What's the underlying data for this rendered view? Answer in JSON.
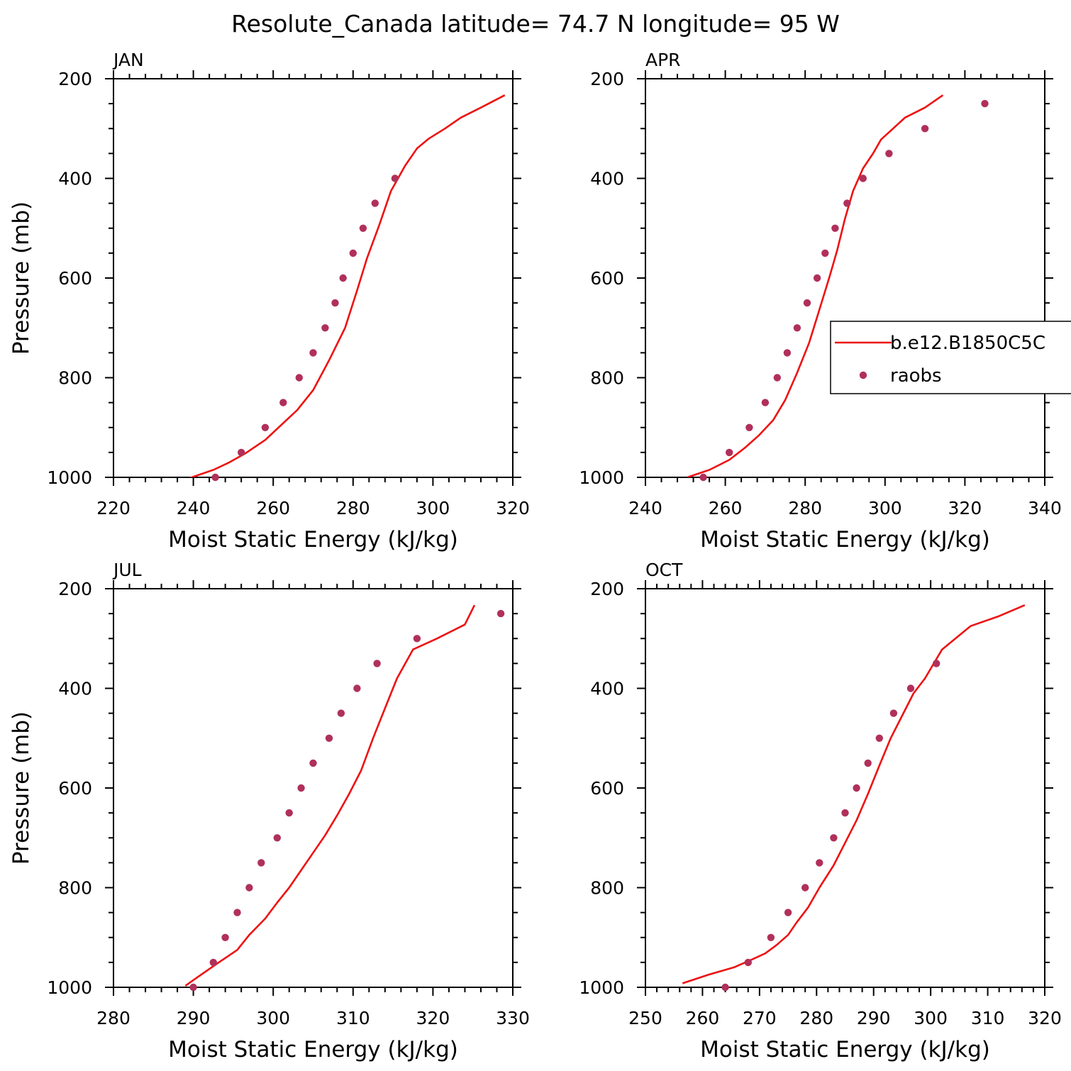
{
  "figure": {
    "title": "Resolute_Canada  latitude= 74.7 N longitude= 95 W"
  },
  "legend": {
    "entries": [
      {
        "label": "b.e12.B1850C5C",
        "kind": "line",
        "color": "#ee1111"
      },
      {
        "label": "raobs",
        "kind": "marker",
        "color": "#b0305a"
      }
    ]
  },
  "chart_data": [
    {
      "type": "line",
      "panel": "JAN",
      "xlabel": "Moist Static Energy (kJ/kg)",
      "ylabel": "Pressure (mb)",
      "xlim": [
        220,
        320
      ],
      "ylim": [
        200,
        1000
      ],
      "y_reversed": true,
      "xticks": [
        220,
        240,
        260,
        280,
        300,
        320
      ],
      "yticks": [
        200,
        400,
        600,
        800,
        1000
      ],
      "series": [
        {
          "name": "b.e12.B1850C5C",
          "kind": "line",
          "color": "#ee1111",
          "points": [
            [
              238.5,
              1003
            ],
            [
              245,
              985
            ],
            [
              249,
              970
            ],
            [
              253,
              952
            ],
            [
              258,
              925
            ],
            [
              262,
              895
            ],
            [
              266,
              865
            ],
            [
              270,
              825
            ],
            [
              274,
              765
            ],
            [
              278,
              700
            ],
            [
              281,
              625
            ],
            [
              283.5,
              560
            ],
            [
              286.5,
              495
            ],
            [
              289.5,
              425
            ],
            [
              293,
              375
            ],
            [
              296,
              340
            ],
            [
              299,
              320
            ],
            [
              303,
              300
            ],
            [
              307,
              278
            ],
            [
              312,
              258
            ],
            [
              318,
              233
            ]
          ]
        },
        {
          "name": "raobs",
          "kind": "scatter",
          "color": "#b0305a",
          "points": [
            [
              245.5,
              1000
            ],
            [
              252,
              950
            ],
            [
              258,
              900
            ],
            [
              262.5,
              850
            ],
            [
              266.5,
              800
            ],
            [
              270,
              750
            ],
            [
              273,
              700
            ],
            [
              275.5,
              650
            ],
            [
              277.5,
              600
            ],
            [
              280,
              550
            ],
            [
              282.5,
              500
            ],
            [
              285.5,
              450
            ],
            [
              290.5,
              400
            ]
          ]
        }
      ]
    },
    {
      "type": "line",
      "panel": "APR",
      "xlabel": "Moist Static Energy (kJ/kg)",
      "ylabel": "",
      "xlim": [
        240,
        340
      ],
      "ylim": [
        200,
        1000
      ],
      "y_reversed": true,
      "xticks": [
        240,
        260,
        280,
        300,
        320,
        340
      ],
      "yticks": [
        200,
        400,
        600,
        800,
        1000
      ],
      "series": [
        {
          "name": "b.e12.B1850C5C",
          "kind": "line",
          "color": "#ee1111",
          "points": [
            [
              250.5,
              1000
            ],
            [
              256,
              985
            ],
            [
              261,
              965
            ],
            [
              265,
              940
            ],
            [
              268.5,
              915
            ],
            [
              272,
              885
            ],
            [
              275,
              845
            ],
            [
              278,
              790
            ],
            [
              281,
              730
            ],
            [
              283.5,
              665
            ],
            [
              286,
              600
            ],
            [
              288,
              545
            ],
            [
              290,
              480
            ],
            [
              292,
              425
            ],
            [
              294.5,
              380
            ],
            [
              297,
              350
            ],
            [
              299,
              322
            ],
            [
              302,
              300
            ],
            [
              305,
              278
            ],
            [
              310,
              258
            ],
            [
              314.5,
              233
            ]
          ]
        },
        {
          "name": "raobs",
          "kind": "scatter",
          "color": "#b0305a",
          "points": [
            [
              254.5,
              1000
            ],
            [
              261,
              950
            ],
            [
              266,
              900
            ],
            [
              270,
              850
            ],
            [
              273,
              800
            ],
            [
              275.5,
              750
            ],
            [
              278,
              700
            ],
            [
              280.5,
              650
            ],
            [
              283,
              600
            ],
            [
              285,
              550
            ],
            [
              287.5,
              500
            ],
            [
              290.5,
              450
            ],
            [
              294.5,
              400
            ],
            [
              301,
              350
            ],
            [
              310,
              300
            ],
            [
              325,
              250
            ]
          ]
        }
      ]
    },
    {
      "type": "line",
      "panel": "JUL",
      "xlabel": "Moist Static Energy (kJ/kg)",
      "ylabel": "Pressure (mb)",
      "xlim": [
        280,
        330
      ],
      "ylim": [
        200,
        1000
      ],
      "y_reversed": true,
      "xticks": [
        280,
        290,
        300,
        310,
        320,
        330
      ],
      "yticks": [
        200,
        400,
        600,
        800,
        1000
      ],
      "series": [
        {
          "name": "b.e12.B1850C5C",
          "kind": "line",
          "color": "#ee1111",
          "points": [
            [
              289,
              997
            ],
            [
              290.5,
              980
            ],
            [
              293,
              952
            ],
            [
              295.5,
              925
            ],
            [
              297,
              895
            ],
            [
              299,
              862
            ],
            [
              300.5,
              830
            ],
            [
              302,
              800
            ],
            [
              303.5,
              765
            ],
            [
              305,
              730
            ],
            [
              306.5,
              695
            ],
            [
              308,
              655
            ],
            [
              309.5,
              612
            ],
            [
              311,
              565
            ],
            [
              312.5,
              500
            ],
            [
              314,
              440
            ],
            [
              315.5,
              380
            ],
            [
              317.5,
              322
            ],
            [
              320.5,
              300
            ],
            [
              324,
              272
            ],
            [
              325.2,
              233
            ]
          ]
        },
        {
          "name": "raobs",
          "kind": "scatter",
          "color": "#b0305a",
          "points": [
            [
              290,
              1000
            ],
            [
              292.5,
              950
            ],
            [
              294,
              900
            ],
            [
              295.5,
              850
            ],
            [
              297,
              800
            ],
            [
              298.5,
              750
            ],
            [
              300.5,
              700
            ],
            [
              302,
              650
            ],
            [
              303.5,
              600
            ],
            [
              305,
              550
            ],
            [
              307,
              500
            ],
            [
              308.5,
              450
            ],
            [
              310.5,
              400
            ],
            [
              313,
              350
            ],
            [
              318,
              300
            ],
            [
              328.5,
              250
            ]
          ]
        }
      ]
    },
    {
      "type": "line",
      "panel": "OCT",
      "xlabel": "Moist Static Energy (kJ/kg)",
      "ylabel": "",
      "xlim": [
        250,
        320
      ],
      "ylim": [
        200,
        1000
      ],
      "y_reversed": true,
      "xticks": [
        250,
        260,
        270,
        280,
        290,
        300,
        310,
        320
      ],
      "yticks": [
        200,
        400,
        600,
        800,
        1000
      ],
      "series": [
        {
          "name": "b.e12.B1850C5C",
          "kind": "line",
          "color": "#ee1111",
          "points": [
            [
              256.5,
              992
            ],
            [
              261,
              975
            ],
            [
              265.5,
              960
            ],
            [
              268.5,
              945
            ],
            [
              271,
              932
            ],
            [
              273,
              915
            ],
            [
              275,
              895
            ],
            [
              276.5,
              870
            ],
            [
              278.5,
              840
            ],
            [
              280.5,
              800
            ],
            [
              283,
              755
            ],
            [
              285,
              710
            ],
            [
              287,
              665
            ],
            [
              289,
              612
            ],
            [
              291,
              555
            ],
            [
              293,
              500
            ],
            [
              295,
              455
            ],
            [
              297,
              410
            ],
            [
              299,
              380
            ],
            [
              302,
              322
            ],
            [
              307,
              275
            ],
            [
              312,
              255
            ],
            [
              316.5,
              233
            ]
          ]
        },
        {
          "name": "raobs",
          "kind": "scatter",
          "color": "#b0305a",
          "points": [
            [
              264,
              1000
            ],
            [
              268,
              950
            ],
            [
              272,
              900
            ],
            [
              275,
              850
            ],
            [
              278,
              800
            ],
            [
              280.5,
              750
            ],
            [
              283,
              700
            ],
            [
              285,
              650
            ],
            [
              287,
              600
            ],
            [
              289,
              550
            ],
            [
              291,
              500
            ],
            [
              293.5,
              450
            ],
            [
              296.5,
              400
            ],
            [
              301,
              350
            ]
          ]
        }
      ]
    }
  ]
}
